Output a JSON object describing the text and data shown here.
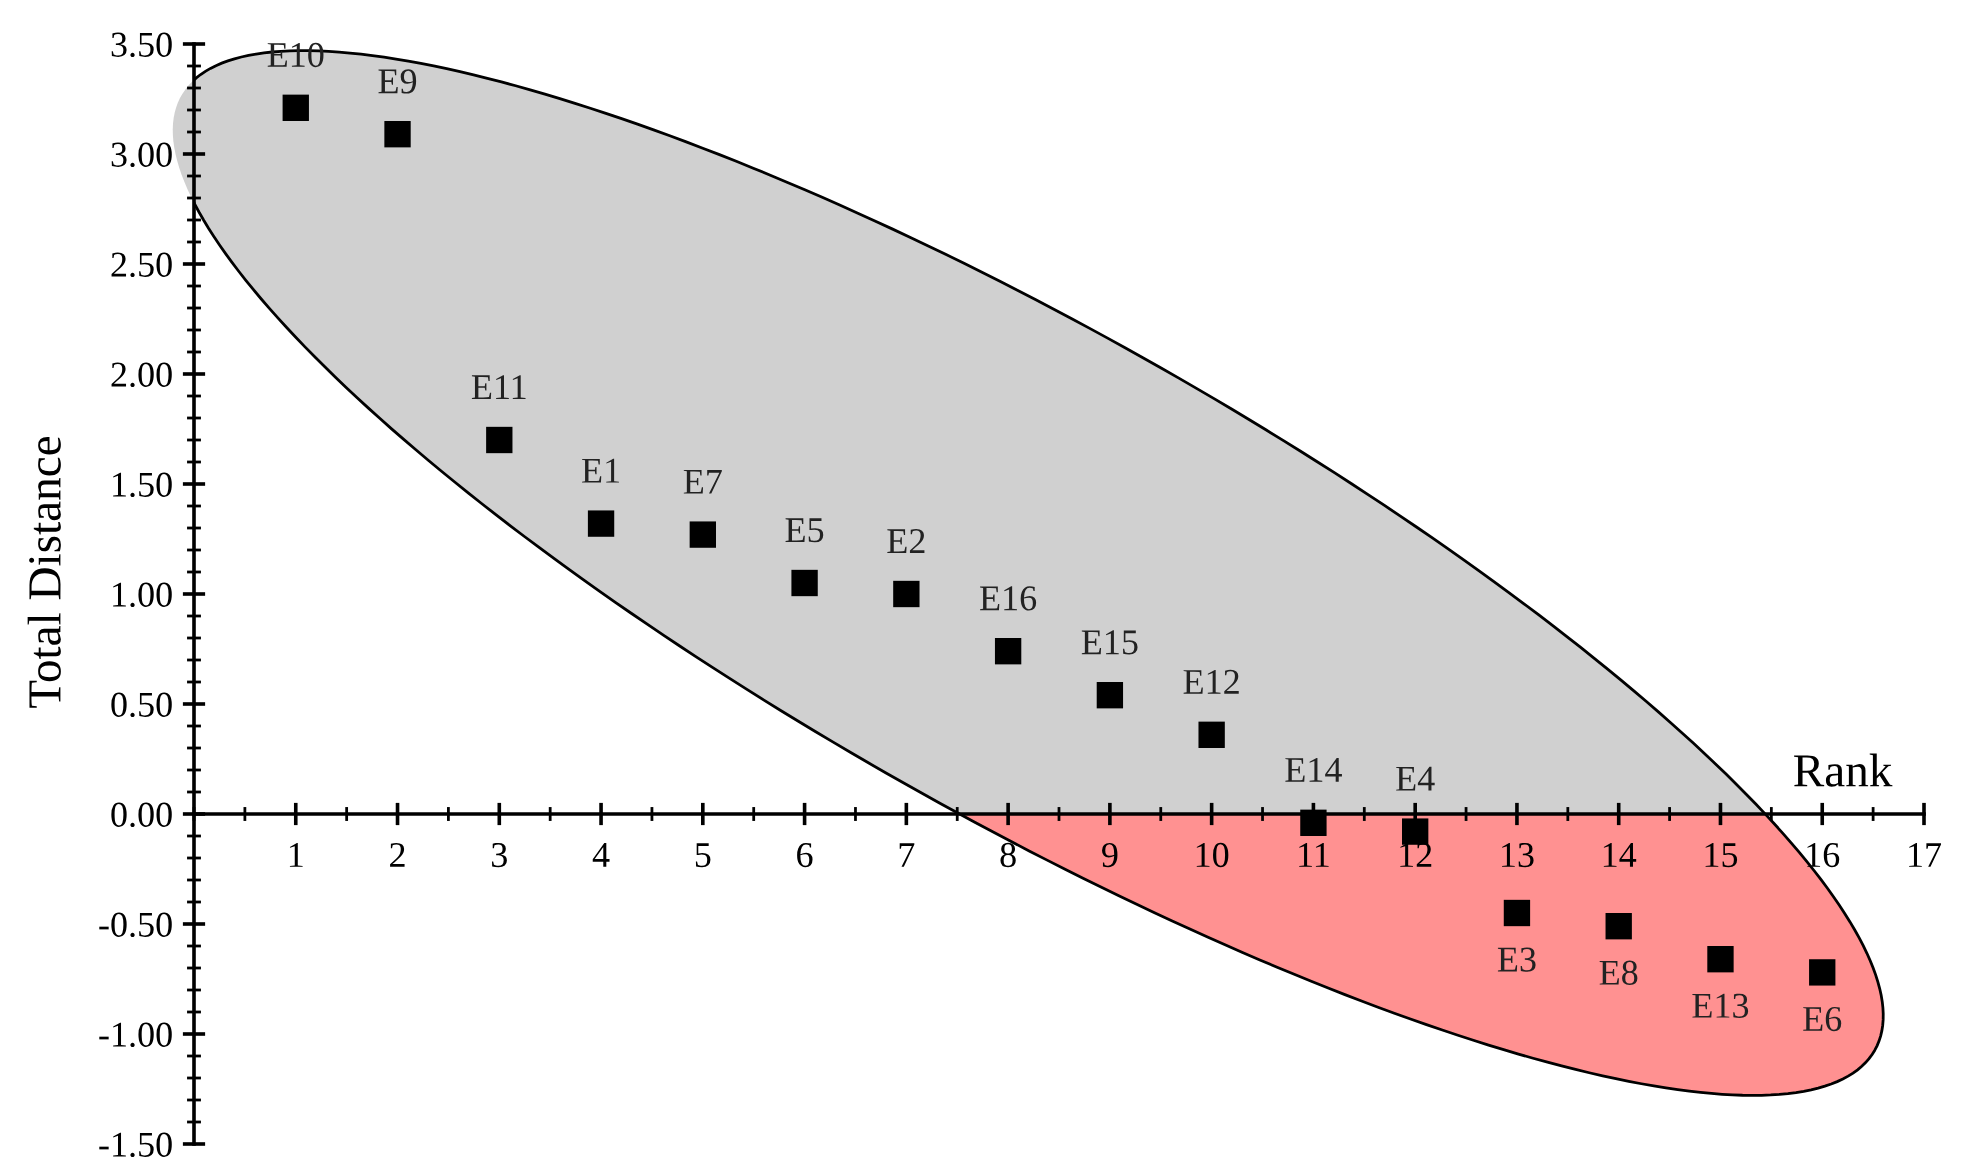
{
  "chart_data": {
    "type": "scatter",
    "xlabel": "Rank",
    "ylabel": "Total Distance",
    "x": [
      1,
      2,
      3,
      4,
      5,
      6,
      7,
      8,
      9,
      10,
      11,
      12,
      13,
      14,
      15,
      16
    ],
    "series": [
      {
        "color": "#000000",
        "values": [
          3.21,
          3.09,
          1.7,
          1.32,
          1.27,
          1.05,
          1.0,
          0.74,
          0.54,
          0.36,
          -0.04,
          -0.08,
          -0.45,
          -0.51,
          -0.66,
          -0.72
        ]
      }
    ],
    "marker": "square",
    "annotations": [
      {
        "text": "E10",
        "x": 1,
        "y": 3.21
      },
      {
        "text": "E9",
        "x": 2,
        "y": 3.09
      },
      {
        "text": "E11",
        "x": 3,
        "y": 1.7
      },
      {
        "text": "E1",
        "x": 4,
        "y": 1.32
      },
      {
        "text": "E7",
        "x": 5,
        "y": 1.27
      },
      {
        "text": "E5",
        "x": 6,
        "y": 1.05
      },
      {
        "text": "E2",
        "x": 7,
        "y": 1.0
      },
      {
        "text": "E16",
        "x": 8,
        "y": 0.74
      },
      {
        "text": "E15",
        "x": 9,
        "y": 0.54
      },
      {
        "text": "E12",
        "x": 10,
        "y": 0.36
      },
      {
        "text": "E14",
        "x": 11,
        "y": -0.04
      },
      {
        "text": "E4",
        "x": 12,
        "y": -0.08
      },
      {
        "text": "E3",
        "x": 13,
        "y": -0.45
      },
      {
        "text": "E8",
        "x": 14,
        "y": -0.51
      },
      {
        "text": "E13",
        "x": 15,
        "y": -0.66
      },
      {
        "text": "E6",
        "x": 16,
        "y": -0.72
      }
    ],
    "xlim": [
      0,
      17
    ],
    "xticks": [
      1,
      2,
      3,
      4,
      5,
      6,
      7,
      8,
      9,
      10,
      11,
      12,
      13,
      14,
      15,
      16,
      17
    ],
    "ylim": [
      -1.5,
      3.5
    ],
    "yticks": [
      {
        "value": -1.5,
        "label": "-1.50"
      },
      {
        "value": -1.0,
        "label": "-1.00"
      },
      {
        "value": -0.5,
        "label": "-0.50"
      },
      {
        "value": 0,
        "label": "0.00"
      },
      {
        "value": 0.5,
        "label": "0.50"
      },
      {
        "value": 1.0,
        "label": "1.00"
      },
      {
        "value": 1.5,
        "label": "1.50"
      },
      {
        "value": 2.0,
        "label": "2.00"
      },
      {
        "value": 2.5,
        "label": "2.50"
      },
      {
        "value": 3.0,
        "label": "3.00"
      },
      {
        "value": 3.5,
        "label": "3.50"
      }
    ],
    "grid": false,
    "legend": false
  }
}
